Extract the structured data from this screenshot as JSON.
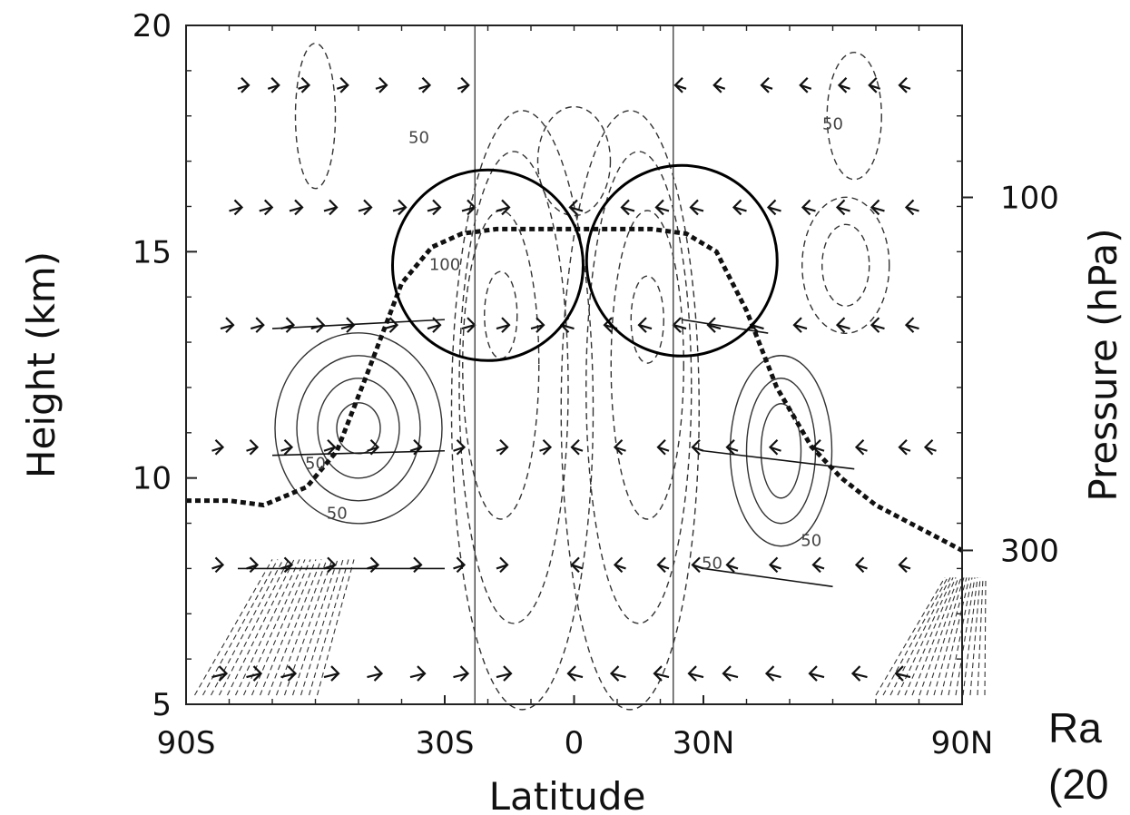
{
  "chart_data": {
    "type": "contour",
    "xlabel": "Latitude",
    "ylabel": "Height (km)",
    "y2label": "Pressure (hPa)",
    "x_ticks": [
      "90S",
      "30S",
      "0",
      "30N",
      "90N"
    ],
    "x_tick_values": [
      -90,
      -30,
      0,
      30,
      90
    ],
    "xlim": [
      -90,
      90
    ],
    "y_ticks": [
      "5",
      "10",
      "15",
      "20"
    ],
    "y_tick_values": [
      5,
      10,
      15,
      20
    ],
    "ylim": [
      5,
      20
    ],
    "y2_ticks": [
      "100",
      "300"
    ],
    "y2_tick_values_km": [
      16.2,
      8.4
    ],
    "vertical_lines_lat": [
      -23,
      23
    ],
    "contour_labels": [
      "50",
      "50",
      "50",
      "50",
      "100",
      "50",
      "50"
    ],
    "tropopause": {
      "lat": [
        -90,
        -80,
        -72,
        -62,
        -55,
        -48,
        -40,
        -33,
        -26,
        -18,
        -10,
        0,
        10,
        18,
        26,
        33,
        40,
        47,
        55,
        62,
        70,
        80,
        90
      ],
      "height_km": [
        9.5,
        9.5,
        9.4,
        9.8,
        10.6,
        12.3,
        14.3,
        15.1,
        15.4,
        15.5,
        15.5,
        15.5,
        15.5,
        15.5,
        15.4,
        15.0,
        13.7,
        12.0,
        10.7,
        10.0,
        9.4,
        8.9,
        8.4
      ]
    },
    "highlight_circles": [
      {
        "lat": -20,
        "height_km": 14.7
      },
      {
        "lat": 25,
        "height_km": 14.8
      }
    ],
    "partial_text": [
      "Ra",
      "(20"
    ]
  }
}
